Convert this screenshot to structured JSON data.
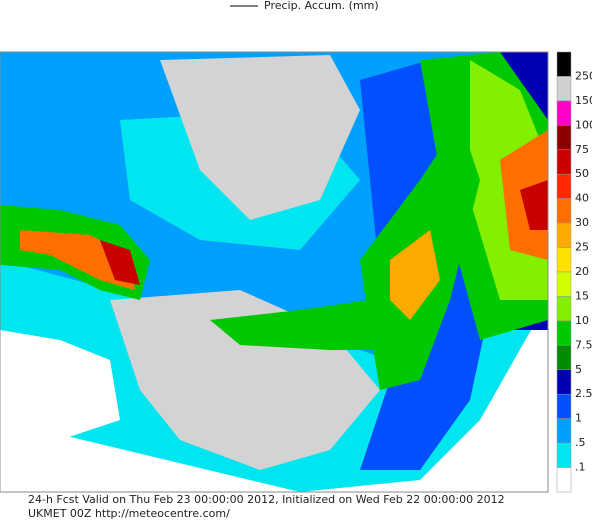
{
  "header": {
    "title": "Precip. Accum. (mm)"
  },
  "legend": {
    "labels": [
      "250",
      "150",
      "100",
      "75",
      "50",
      "40",
      "30",
      "25",
      "20",
      "15",
      "10",
      "7.5",
      "5",
      "2.5",
      "1",
      ".5",
      ".1"
    ],
    "colors": [
      "#000000",
      "#d0d0d0",
      "#ff00c8",
      "#8c0000",
      "#c80000",
      "#ff2800",
      "#ff6e00",
      "#ffaa00",
      "#ffe100",
      "#d2ff00",
      "#82f000",
      "#00c800",
      "#008c00",
      "#0000b4",
      "#0050ff",
      "#00a0ff",
      "#00e6f0",
      "#ffffff"
    ]
  },
  "footer": {
    "line1": "24-h Fcst Valid on Thu Feb 23 00:00:00 2012, Initialized on Wed Feb 22 00:00:00 2012",
    "line2": "UKMET 00Z http://meteocentre.com/"
  }
}
